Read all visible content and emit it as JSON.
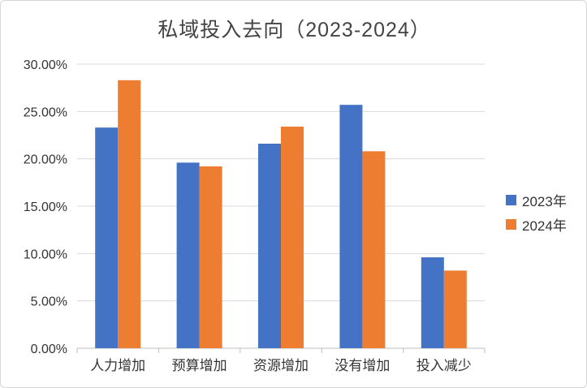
{
  "chart_data": {
    "type": "bar",
    "title": "私域投入去向（2023-2024）",
    "xlabel": "",
    "ylabel": "",
    "categories": [
      "人力增加",
      "预算增加",
      "资源增加",
      "没有增加",
      "投入减少"
    ],
    "series": [
      {
        "name": "2023年",
        "color": "#4472C4",
        "values": [
          23.3,
          19.6,
          21.6,
          25.7,
          9.6
        ]
      },
      {
        "name": "2024年",
        "color": "#ED7D31",
        "values": [
          28.3,
          19.2,
          23.4,
          20.8,
          8.2
        ]
      }
    ],
    "ylim": [
      0,
      30
    ],
    "yticks": [
      0,
      5,
      10,
      15,
      20,
      25,
      30
    ],
    "ytick_labels": [
      "0.00%",
      "5.00%",
      "10.00%",
      "15.00%",
      "20.00%",
      "25.00%",
      "30.00%"
    ],
    "grid": true,
    "legend_position": "right"
  }
}
